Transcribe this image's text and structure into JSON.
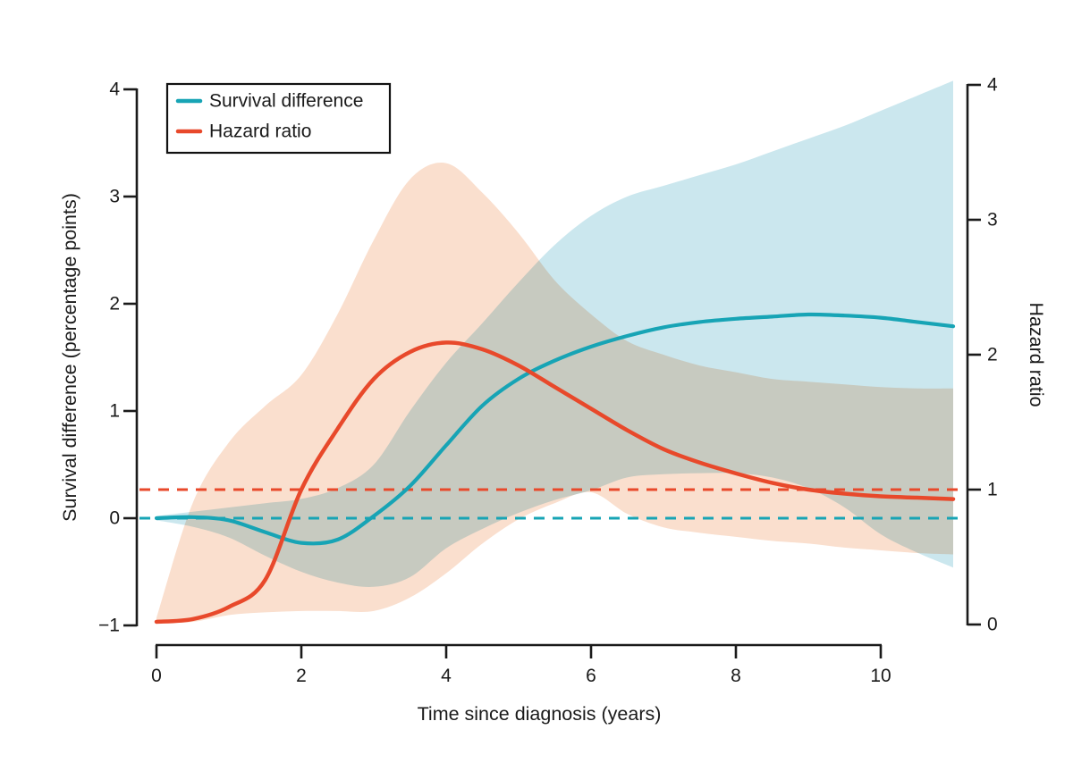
{
  "colors": {
    "ink": "#1a1a1a",
    "background": "#ffffff",
    "survival_line": "#17a4b5",
    "hazard_line": "#e8492b",
    "survival_band": "#cbe7ee",
    "hazard_band": "#fadfce"
  },
  "chart_data": {
    "type": "line",
    "title": "",
    "x": {
      "label": "Time since diagnosis (years)",
      "ticks": [
        0,
        2,
        4,
        6,
        8,
        10
      ],
      "range": [
        0,
        11
      ]
    },
    "y_left": {
      "label": "Survival difference (percentage points)",
      "ticks": [
        -1,
        0,
        1,
        2,
        3,
        4
      ],
      "range": [
        -1,
        4
      ]
    },
    "y_right": {
      "label": "Hazard ratio",
      "ticks": [
        0,
        1,
        2,
        3,
        4
      ],
      "range": [
        0,
        4
      ]
    },
    "t": [
      0,
      0.5,
      1,
      1.5,
      2,
      2.5,
      3,
      3.5,
      4,
      4.5,
      5,
      5.5,
      6,
      6.5,
      7,
      7.5,
      8,
      8.5,
      9,
      9.5,
      10,
      10.5,
      11
    ],
    "series": [
      {
        "name": "Survival difference",
        "axis": "left",
        "color": "#17a4b5",
        "values": [
          0.0,
          0.01,
          -0.02,
          -0.13,
          -0.23,
          -0.2,
          0.02,
          0.3,
          0.68,
          1.05,
          1.3,
          1.47,
          1.6,
          1.7,
          1.78,
          1.83,
          1.86,
          1.88,
          1.9,
          1.89,
          1.87,
          1.83,
          1.79
        ],
        "band": {
          "color": "#cbe7ee",
          "upper": [
            0.02,
            0.06,
            0.1,
            0.14,
            0.18,
            0.28,
            0.5,
            1.0,
            1.45,
            1.82,
            2.2,
            2.55,
            2.82,
            3.0,
            3.1,
            3.2,
            3.3,
            3.42,
            3.54,
            3.66,
            3.8,
            3.94,
            4.08
          ],
          "lower": [
            -0.02,
            -0.08,
            -0.18,
            -0.35,
            -0.5,
            -0.6,
            -0.64,
            -0.55,
            -0.28,
            -0.1,
            0.05,
            0.17,
            0.26,
            0.38,
            0.41,
            0.42,
            0.42,
            0.38,
            0.28,
            0.1,
            -0.15,
            -0.32,
            -0.46
          ]
        }
      },
      {
        "name": "Hazard ratio",
        "axis": "right",
        "color": "#e8492b",
        "values": [
          0.02,
          0.04,
          0.13,
          0.33,
          1.0,
          1.45,
          1.82,
          2.02,
          2.09,
          2.04,
          1.92,
          1.76,
          1.6,
          1.44,
          1.3,
          1.2,
          1.12,
          1.05,
          1.0,
          0.97,
          0.95,
          0.94,
          0.93
        ],
        "band": {
          "color": "#fadfce",
          "upper": [
            0.05,
            0.9,
            1.35,
            1.62,
            1.85,
            2.3,
            2.85,
            3.3,
            3.42,
            3.2,
            2.9,
            2.55,
            2.3,
            2.1,
            2.0,
            1.92,
            1.87,
            1.82,
            1.8,
            1.78,
            1.76,
            1.75,
            1.75
          ],
          "lower": [
            0.01,
            0.02,
            0.07,
            0.09,
            0.1,
            0.1,
            0.1,
            0.2,
            0.38,
            0.6,
            0.78,
            0.9,
            0.98,
            0.82,
            0.72,
            0.68,
            0.65,
            0.62,
            0.6,
            0.57,
            0.55,
            0.53,
            0.52
          ]
        }
      }
    ],
    "reference_lines": [
      {
        "axis": "left",
        "value": 0,
        "color": "#17a4b5",
        "style": "dashed",
        "meaning": "no survival difference"
      },
      {
        "axis": "right",
        "value": 1,
        "color": "#e8492b",
        "style": "dashed",
        "meaning": "hazard ratio = 1"
      }
    ],
    "legend": {
      "position": "top-left",
      "items": [
        "Survival difference",
        "Hazard ratio"
      ]
    },
    "grid": false
  }
}
